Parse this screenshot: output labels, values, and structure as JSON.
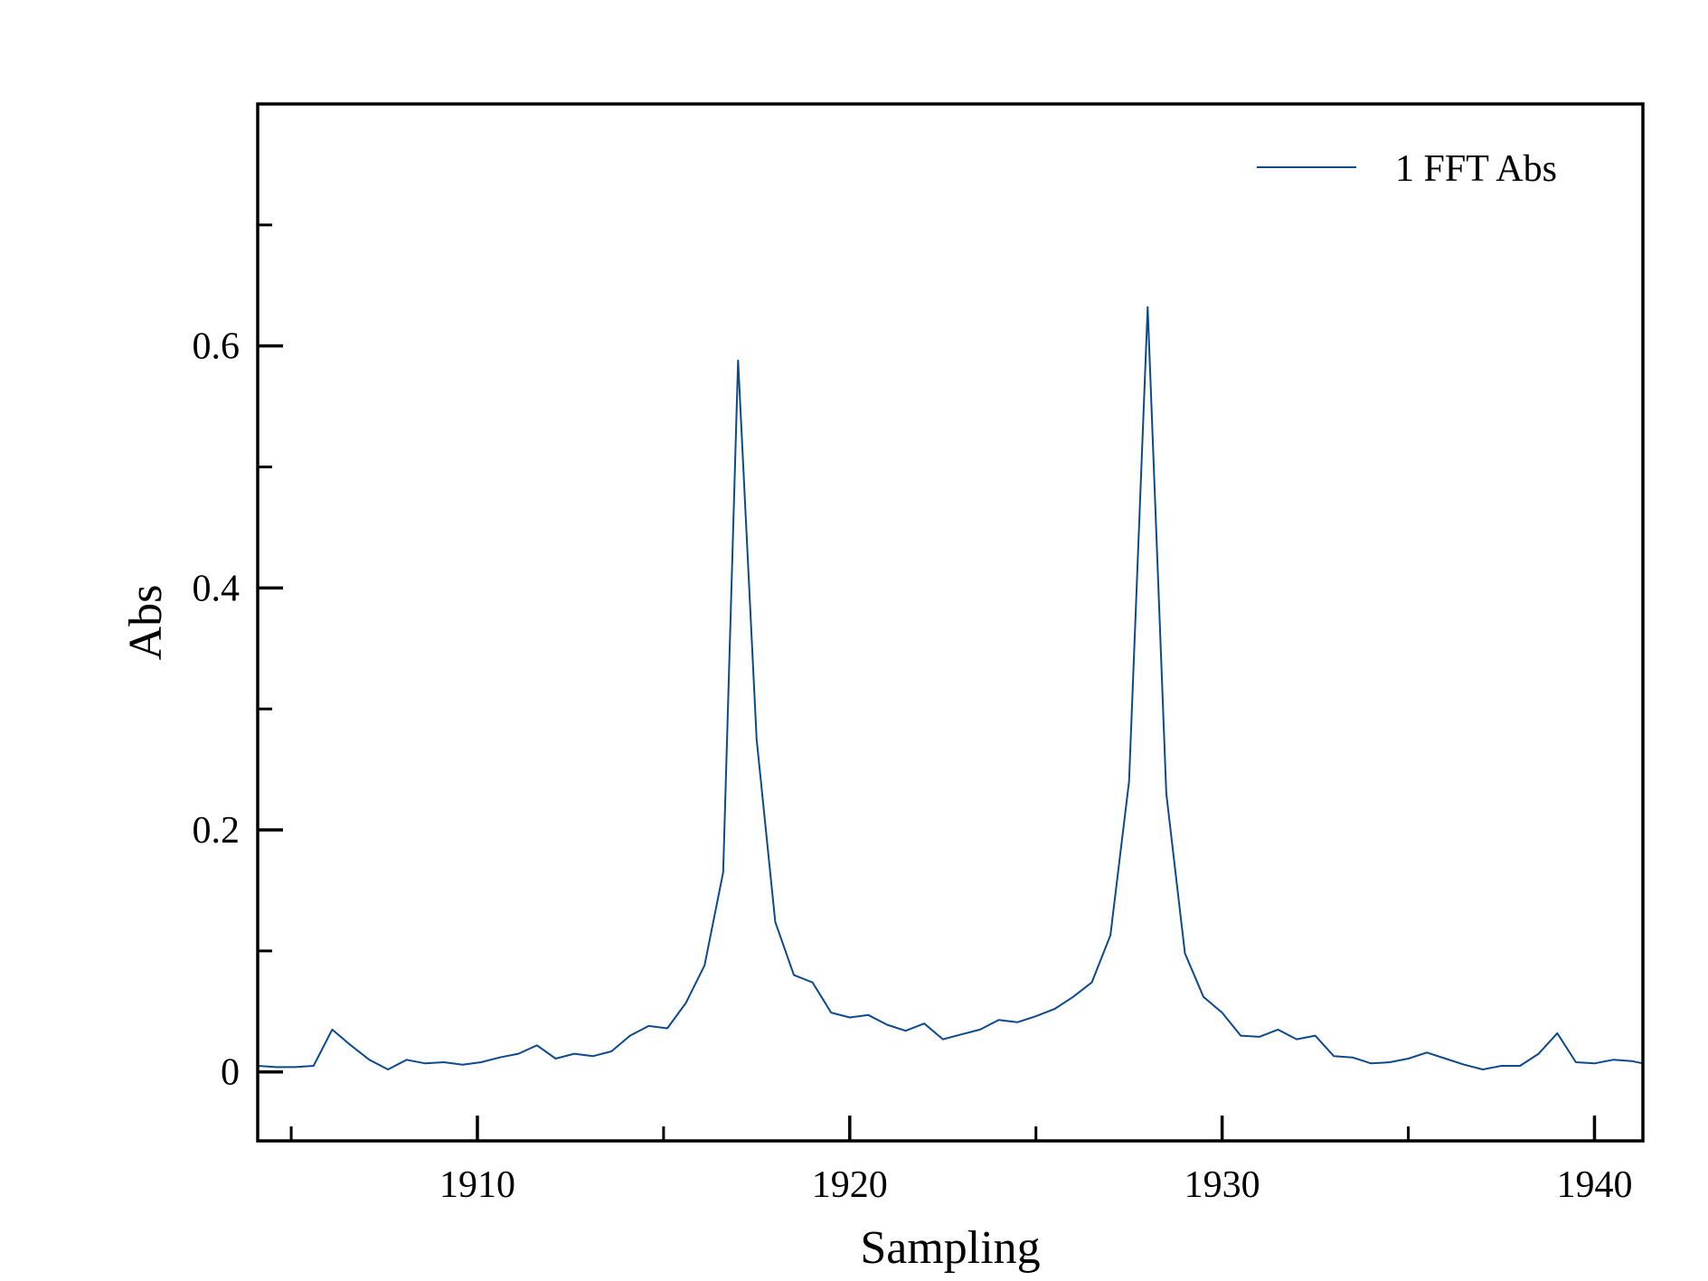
{
  "chart_data": {
    "type": "line",
    "title": "",
    "xlabel": "Sampling",
    "ylabel": "Abs",
    "xlim": [
      1904.1,
      1941.3
    ],
    "ylim": [
      -0.057,
      0.8
    ],
    "x_ticks": [
      1910,
      1920,
      1930,
      1940
    ],
    "x_tick_labels": [
      "1910",
      "1920",
      "1930",
      "1940"
    ],
    "x_minor_ticks": [
      1905,
      1915,
      1925,
      1935
    ],
    "y_ticks": [
      0,
      0.2,
      0.4,
      0.6
    ],
    "y_tick_labels": [
      "0",
      "0.2",
      "0.4",
      "0.6"
    ],
    "y_minor_ticks": [
      0.1,
      0.3,
      0.5,
      0.7
    ],
    "grid": false,
    "legend_position": "top-right",
    "series": [
      {
        "name": "1 FFT Abs",
        "color": "#0d4a8c",
        "x": [
          1904.1,
          1904.6,
          1905.1,
          1905.6,
          1906.1,
          1906.6,
          1907.1,
          1907.6,
          1908.1,
          1908.6,
          1909.1,
          1909.6,
          1910.1,
          1910.6,
          1911.1,
          1911.6,
          1912.1,
          1912.6,
          1913.1,
          1913.6,
          1914.1,
          1914.6,
          1915.1,
          1915.6,
          1916.1,
          1916.6,
          1917.0,
          1917.5,
          1918.0,
          1918.5,
          1919.0,
          1919.5,
          1920.0,
          1920.5,
          1921.0,
          1921.5,
          1922.0,
          1922.5,
          1923.0,
          1923.5,
          1924.0,
          1924.5,
          1925.0,
          1925.5,
          1926.0,
          1926.5,
          1927.0,
          1927.5,
          1928.0,
          1928.5,
          1929.0,
          1929.5,
          1930.0,
          1930.5,
          1931.0,
          1931.5,
          1932.0,
          1932.5,
          1933.0,
          1933.5,
          1934.0,
          1934.5,
          1935.0,
          1935.5,
          1936.0,
          1936.5,
          1937.0,
          1937.5,
          1938.0,
          1938.5,
          1939.0,
          1939.5,
          1940.0,
          1940.5,
          1941.0,
          1941.3
        ],
        "y": [
          0.005,
          0.004,
          0.004,
          0.005,
          0.035,
          0.022,
          0.01,
          0.002,
          0.01,
          0.007,
          0.008,
          0.006,
          0.008,
          0.012,
          0.015,
          0.022,
          0.011,
          0.015,
          0.013,
          0.017,
          0.03,
          0.038,
          0.036,
          0.057,
          0.088,
          0.165,
          0.588,
          0.275,
          0.124,
          0.08,
          0.074,
          0.049,
          0.045,
          0.047,
          0.039,
          0.034,
          0.04,
          0.027,
          0.031,
          0.035,
          0.043,
          0.041,
          0.046,
          0.052,
          0.062,
          0.074,
          0.113,
          0.24,
          0.632,
          0.23,
          0.098,
          0.062,
          0.049,
          0.03,
          0.029,
          0.035,
          0.027,
          0.03,
          0.013,
          0.012,
          0.007,
          0.008,
          0.011,
          0.016,
          0.011,
          0.006,
          0.002,
          0.005,
          0.005,
          0.015,
          0.032,
          0.008,
          0.007,
          0.01,
          0.009,
          0.007
        ]
      }
    ]
  }
}
